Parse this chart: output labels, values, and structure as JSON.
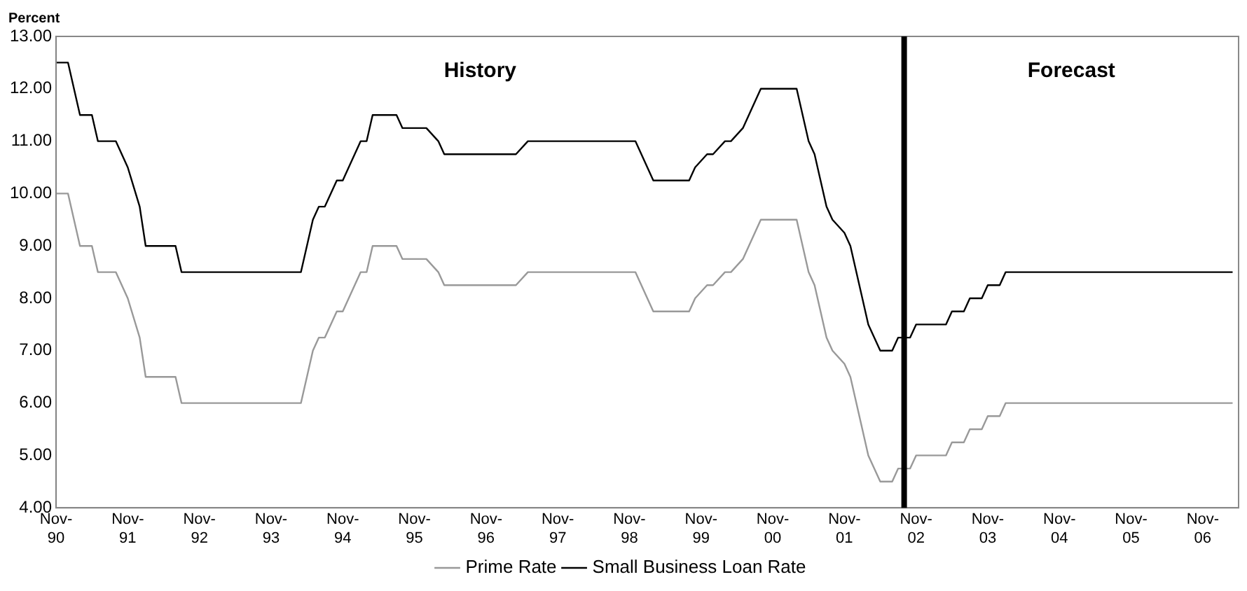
{
  "chart_data": {
    "type": "line",
    "ylabel": "Percent",
    "x": [
      "1990-11",
      "1991-01",
      "1991-03",
      "1991-05",
      "1991-06",
      "1991-09",
      "1991-11",
      "1992-01",
      "1992-02",
      "1992-07",
      "1992-08",
      "1994-04",
      "1994-06",
      "1994-07",
      "1994-08",
      "1994-10",
      "1994-11",
      "1995-02",
      "1995-03",
      "1995-04",
      "1995-08",
      "1995-09",
      "1996-01",
      "1996-03",
      "1996-04",
      "1997-04",
      "1997-06",
      "1998-12",
      "1999-03",
      "1999-09",
      "1999-10",
      "1999-12",
      "2000-01",
      "2000-03",
      "2000-04",
      "2000-06",
      "2000-07",
      "2000-09",
      "2001-03",
      "2001-05",
      "2001-06",
      "2001-08",
      "2001-09",
      "2001-11",
      "2001-12",
      "2002-02",
      "2002-03",
      "2002-05",
      "2002-07",
      "2002-08",
      "2002-10",
      "2002-11",
      "2003-04",
      "2003-05",
      "2003-07",
      "2003-08",
      "2003-10",
      "2003-11",
      "2004-01",
      "2004-02",
      "2007-04"
    ],
    "series": [
      {
        "name": "Prime Rate",
        "color": "#999999",
        "values": [
          10,
          10,
          9,
          9,
          8.5,
          8.5,
          8,
          7.25,
          6.5,
          6.5,
          6,
          6,
          7,
          7.25,
          7.25,
          7.75,
          7.75,
          8.5,
          8.5,
          9,
          9,
          8.75,
          8.75,
          8.5,
          8.25,
          8.25,
          8.5,
          8.5,
          7.75,
          7.75,
          8,
          8.25,
          8.25,
          8.5,
          8.5,
          8.75,
          9,
          9.5,
          9.5,
          8.5,
          8.25,
          7.25,
          7,
          6.75,
          6.5,
          5.5,
          5,
          4.5,
          4.5,
          4.75,
          4.75,
          5,
          5,
          5.25,
          5.25,
          5.5,
          5.5,
          5.75,
          5.75,
          6,
          6
        ]
      },
      {
        "name": "Small Business Loan Rate",
        "color": "#000000",
        "values": [
          12.5,
          12.5,
          11.5,
          11.5,
          11,
          11,
          10.5,
          9.75,
          9,
          9,
          8.5,
          8.5,
          9.5,
          9.75,
          9.75,
          10.25,
          10.25,
          11,
          11,
          11.5,
          11.5,
          11.25,
          11.25,
          11,
          10.75,
          10.75,
          11,
          11,
          10.25,
          10.25,
          10.5,
          10.75,
          10.75,
          11,
          11,
          11.25,
          11.5,
          12,
          12,
          11,
          10.75,
          9.75,
          9.5,
          9.25,
          9,
          8,
          7.5,
          7,
          7,
          7.25,
          7.25,
          7.5,
          7.5,
          7.75,
          7.75,
          8,
          8,
          8.25,
          8.25,
          8.5,
          8.5
        ]
      }
    ],
    "xlim": [
      "1990-11",
      "2007-05"
    ],
    "xticks": [
      {
        "value": "1990-11",
        "label": "Nov-90"
      },
      {
        "value": "1991-11",
        "label": "Nov-91"
      },
      {
        "value": "1992-11",
        "label": "Nov-92"
      },
      {
        "value": "1993-11",
        "label": "Nov-93"
      },
      {
        "value": "1994-11",
        "label": "Nov-94"
      },
      {
        "value": "1995-11",
        "label": "Nov-95"
      },
      {
        "value": "1996-11",
        "label": "Nov-96"
      },
      {
        "value": "1997-11",
        "label": "Nov-97"
      },
      {
        "value": "1998-11",
        "label": "Nov-98"
      },
      {
        "value": "1999-11",
        "label": "Nov-99"
      },
      {
        "value": "2000-11",
        "label": "Nov-00"
      },
      {
        "value": "2001-11",
        "label": "Nov-01"
      },
      {
        "value": "2002-11",
        "label": "Nov-02"
      },
      {
        "value": "2003-11",
        "label": "Nov-03"
      },
      {
        "value": "2004-11",
        "label": "Nov-04"
      },
      {
        "value": "2005-11",
        "label": "Nov-05"
      },
      {
        "value": "2006-11",
        "label": "Nov-06"
      }
    ],
    "ylim": [
      4,
      13
    ],
    "yticks": [
      {
        "value": 4,
        "label": "4.00"
      },
      {
        "value": 5,
        "label": "5.00"
      },
      {
        "value": 6,
        "label": "6.00"
      },
      {
        "value": 7,
        "label": "7.00"
      },
      {
        "value": 8,
        "label": "8.00"
      },
      {
        "value": 9,
        "label": "9.00"
      },
      {
        "value": 10,
        "label": "10.00"
      },
      {
        "value": 11,
        "label": "11.00"
      },
      {
        "value": 12,
        "label": "12.00"
      },
      {
        "value": 13,
        "label": "13.00"
      }
    ],
    "ref_lines": [
      {
        "axis": "x",
        "value": "2002-09",
        "color": "#000000"
      }
    ],
    "annotations": [
      "History",
      "Forecast"
    ],
    "grid": false,
    "legend": "bottom",
    "marker": "none",
    "line_style": "solid"
  }
}
